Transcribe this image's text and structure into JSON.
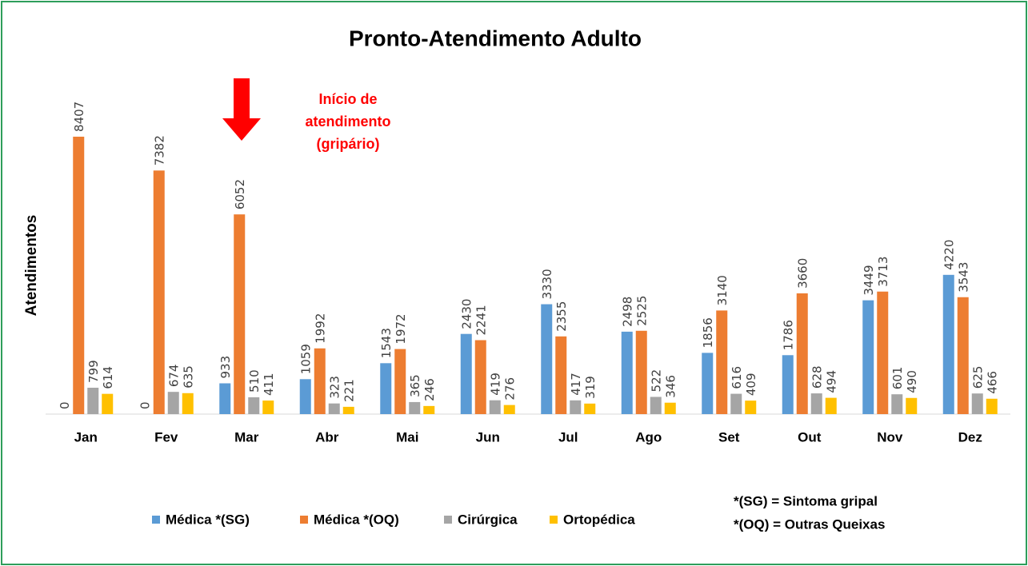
{
  "chart_data": {
    "type": "bar",
    "title": "Pronto-Atendimento Adulto",
    "y_label": "Atendimentos",
    "annotation": [
      "Início de",
      "atendimento",
      "(gripário)"
    ],
    "notes": [
      "*(SG) = Sintoma gripal",
      "*(OQ) = Outras Queixas"
    ],
    "categories": [
      "Jan",
      "Fev",
      "Mar",
      "Abr",
      "Mai",
      "Jun",
      "Jul",
      "Ago",
      "Set",
      "Out",
      "Nov",
      "Dez"
    ],
    "series": [
      {
        "name": "Médica *(SG)",
        "color": "#5b9bd5",
        "values": [
          0,
          0,
          933,
          1059,
          1543,
          2430,
          3330,
          2498,
          1856,
          1786,
          3449,
          4220
        ]
      },
      {
        "name": "Médica *(OQ)",
        "color": "#ed7d31",
        "values": [
          8407,
          7382,
          6052,
          1992,
          1972,
          2241,
          2355,
          2525,
          3140,
          3660,
          3713,
          3543
        ]
      },
      {
        "name": "Cirúrgica",
        "color": "#a5a5a5",
        "values": [
          799,
          674,
          510,
          323,
          365,
          419,
          417,
          522,
          616,
          628,
          601,
          625
        ]
      },
      {
        "name": "Ortopédica",
        "color": "#ffc000",
        "values": [
          614,
          635,
          411,
          221,
          246,
          276,
          319,
          346,
          409,
          494,
          490,
          466
        ]
      }
    ],
    "ylim": [
      0,
      9000
    ]
  }
}
